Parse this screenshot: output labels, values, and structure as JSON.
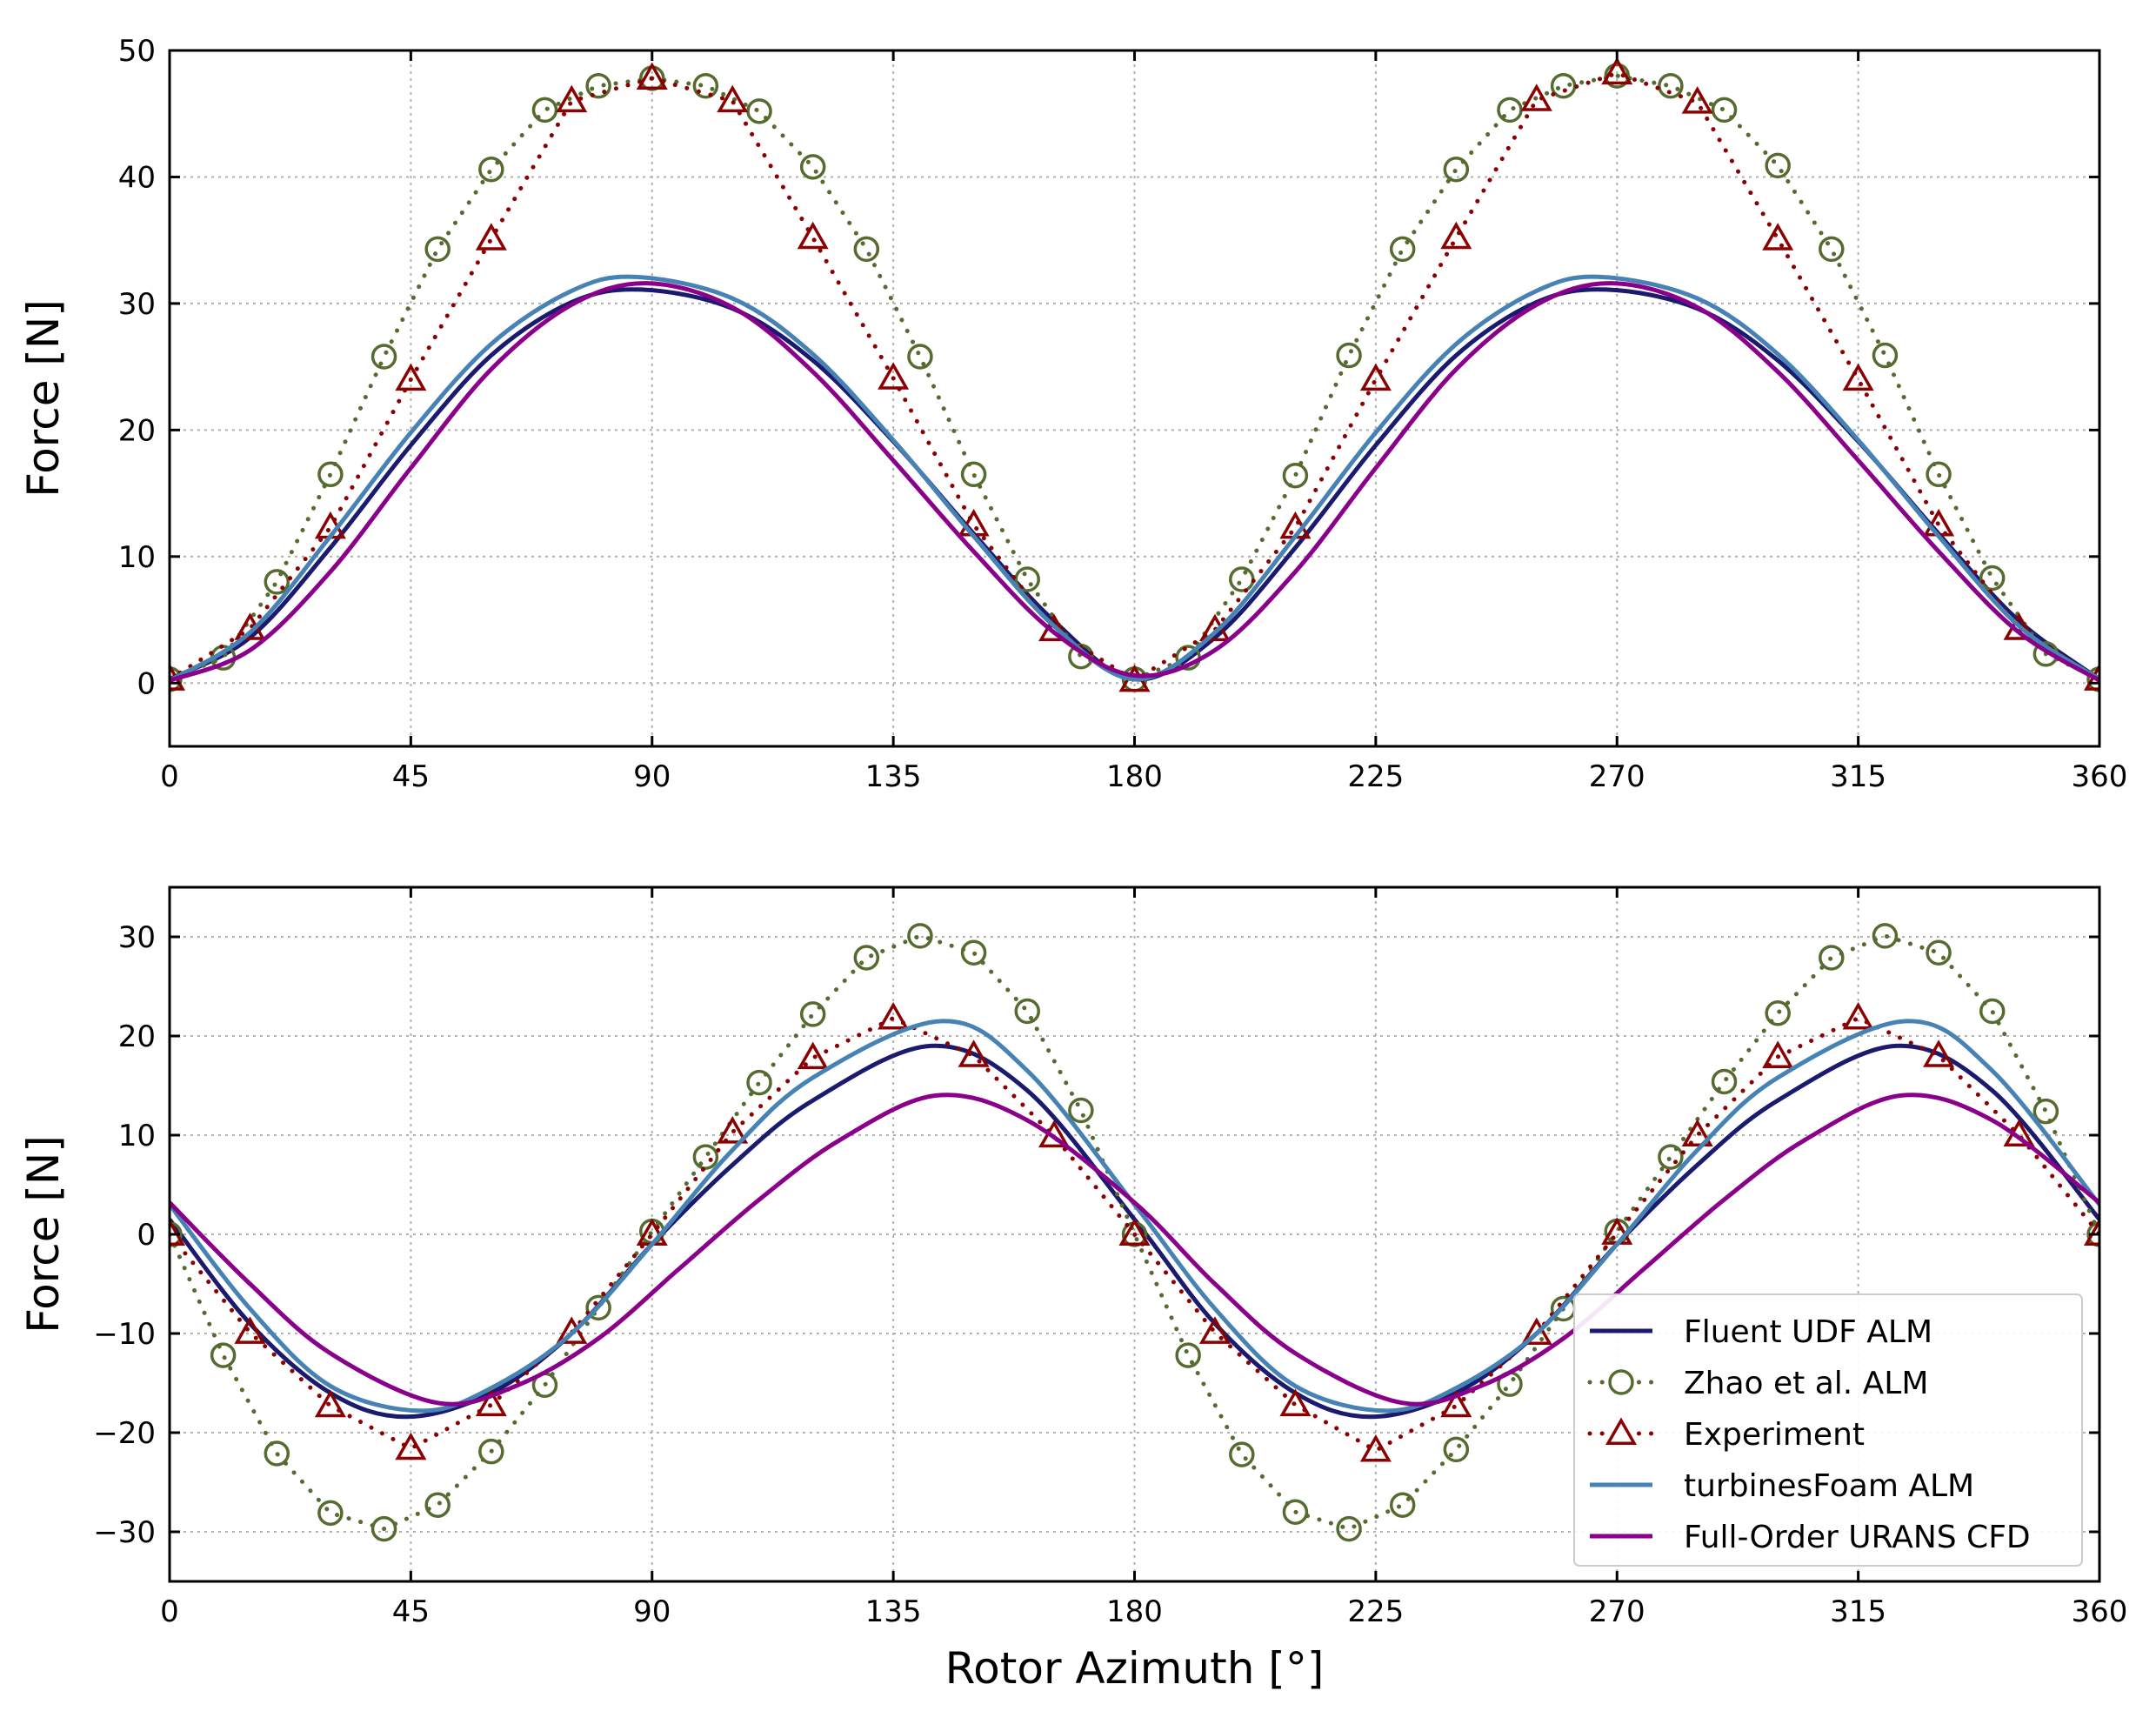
{
  "chart_data": [
    {
      "type": "line",
      "xlabel": "",
      "ylabel": "Force [N]",
      "xlim": [
        0,
        360
      ],
      "ylim": [
        -5,
        50
      ],
      "xticks": [
        0,
        45,
        90,
        135,
        180,
        225,
        270,
        315,
        360
      ],
      "yticks": [
        0,
        10,
        20,
        30,
        40,
        50
      ],
      "grid": true,
      "series": [
        {
          "name": "Fluent UDF ALM",
          "color": "#1a1a6e",
          "style": "solid",
          "x": [
            0,
            15,
            30,
            45,
            60,
            75,
            88,
            105,
            120,
            135,
            150,
            165,
            180,
            195,
            210,
            225,
            240,
            255,
            268,
            285,
            300,
            315,
            330,
            345,
            360
          ],
          "y": [
            0.3,
            3.6,
            10.7,
            18.8,
            25.9,
            30.1,
            31.1,
            29.6,
            25.5,
            19.1,
            11.8,
            4.9,
            0.3,
            3.6,
            10.7,
            18.8,
            25.9,
            30.1,
            31.1,
            29.6,
            25.5,
            19.1,
            11.8,
            4.9,
            0.3
          ]
        },
        {
          "name": "Zhao et al. ALM",
          "color": "#556b2f",
          "style": "dotted",
          "marker": "circle",
          "x": [
            0,
            10,
            20,
            30,
            40,
            50,
            60,
            70,
            80,
            90,
            100,
            110,
            120,
            130,
            140,
            150,
            160,
            170,
            180,
            190,
            200,
            210,
            220,
            230,
            240,
            250,
            260,
            270,
            280,
            290,
            300,
            310,
            320,
            330,
            340,
            350,
            360
          ],
          "y": [
            0.3,
            2.0,
            8.0,
            16.5,
            25.8,
            34.3,
            40.6,
            45.3,
            47.2,
            47.8,
            47.2,
            45.2,
            40.8,
            34.3,
            25.8,
            16.5,
            8.2,
            2.1,
            0.3,
            2.0,
            8.2,
            16.4,
            25.9,
            34.3,
            40.6,
            45.3,
            47.2,
            48.0,
            47.2,
            45.3,
            40.9,
            34.3,
            25.9,
            16.5,
            8.3,
            2.3,
            0.3
          ]
        },
        {
          "name": "Experiment",
          "color": "#8b0000",
          "style": "dotted",
          "marker": "triangle",
          "x": [
            0,
            15,
            30,
            45,
            60,
            75,
            90,
            105,
            120,
            135,
            150,
            165,
            180,
            195,
            210,
            225,
            240,
            255,
            270,
            285,
            300,
            315,
            330,
            345,
            360
          ],
          "y": [
            0.3,
            4.3,
            12.3,
            24.0,
            35.1,
            46.0,
            47.8,
            46.0,
            35.2,
            24.1,
            12.5,
            4.2,
            0.2,
            4.2,
            12.3,
            24.0,
            35.2,
            46.1,
            48.2,
            45.9,
            35.1,
            24.0,
            12.5,
            4.3,
            0.3
          ]
        },
        {
          "name": "turbinesFoam ALM",
          "color": "#4682b4",
          "style": "solid",
          "x": [
            0,
            15,
            30,
            45,
            60,
            75,
            87,
            105,
            120,
            135,
            150,
            165,
            180,
            195,
            210,
            225,
            240,
            255,
            267,
            285,
            300,
            315,
            330,
            345,
            360
          ],
          "y": [
            0.2,
            4.0,
            11.6,
            19.8,
            26.8,
            31.0,
            32.1,
            30.4,
            26.0,
            19.2,
            11.6,
            4.5,
            0.3,
            4.0,
            11.6,
            19.8,
            26.8,
            31.0,
            32.1,
            30.4,
            26.0,
            19.2,
            11.6,
            4.5,
            0.3
          ]
        },
        {
          "name": "Full-Order URANS CFD",
          "color": "#8b008b",
          "style": "solid",
          "x": [
            0,
            15,
            30,
            45,
            60,
            75,
            89,
            105,
            120,
            135,
            150,
            165,
            180,
            195,
            210,
            225,
            240,
            255,
            269,
            285,
            300,
            315,
            330,
            345,
            360
          ],
          "y": [
            0.2,
            2.6,
            8.8,
            17.0,
            24.8,
            29.9,
            31.6,
            29.7,
            24.6,
            17.6,
            10.4,
            4.0,
            0.6,
            2.6,
            8.8,
            17.0,
            24.8,
            29.9,
            31.6,
            29.7,
            24.6,
            17.6,
            10.4,
            4.0,
            0.2
          ]
        }
      ]
    },
    {
      "type": "line",
      "xlabel": "Rotor Azimuth [°]",
      "ylabel": "Force [N]",
      "xlim": [
        0,
        360
      ],
      "ylim": [
        -35,
        35
      ],
      "xticks": [
        0,
        45,
        90,
        135,
        180,
        225,
        270,
        315,
        360
      ],
      "yticks": [
        -30,
        -20,
        -10,
        0,
        10,
        20,
        30
      ],
      "tick_labels": {
        "x": [
          "0",
          "45",
          "90",
          "135",
          "180",
          "225",
          "270",
          "315",
          "360"
        ],
        "y": [
          "−30",
          "−20",
          "−10",
          "0",
          "10",
          "20",
          "30"
        ]
      },
      "grid": true,
      "legend": "lower-right",
      "series": [
        {
          "name": "Fluent UDF ALM",
          "color": "#1a1a6e",
          "style": "solid",
          "x": [
            0,
            15,
            30,
            44,
            60,
            75,
            90,
            105,
            120,
            142,
            160,
            180,
            195,
            210,
            224,
            240,
            255,
            270,
            285,
            300,
            322,
            340,
            360
          ],
          "y": [
            1.5,
            -9.0,
            -16.0,
            -18.4,
            -16.0,
            -10.0,
            -1.0,
            7.0,
            13.5,
            19.0,
            14.5,
            1.5,
            -9.0,
            -16.0,
            -18.4,
            -16.0,
            -10.0,
            -1.0,
            7.0,
            13.5,
            19.0,
            14.5,
            1.5
          ]
        },
        {
          "name": "Zhao et al. ALM",
          "color": "#556b2f",
          "style": "dotted",
          "marker": "circle",
          "x": [
            0,
            10,
            20,
            30,
            40,
            50,
            60,
            70,
            80,
            90,
            100,
            110,
            120,
            130,
            140,
            150,
            160,
            170,
            180,
            190,
            200,
            210,
            220,
            230,
            240,
            250,
            260,
            270,
            280,
            290,
            300,
            310,
            320,
            330,
            340,
            350,
            360
          ],
          "y": [
            0.0,
            -12.2,
            -22.1,
            -28.1,
            -29.7,
            -27.3,
            -21.9,
            -15.2,
            -7.4,
            0.3,
            7.8,
            15.3,
            22.2,
            27.9,
            30.1,
            28.4,
            22.5,
            12.5,
            0.0,
            -12.2,
            -22.2,
            -28.0,
            -29.7,
            -27.3,
            -21.7,
            -15.1,
            -7.5,
            0.3,
            7.8,
            15.4,
            22.3,
            27.9,
            30.1,
            28.4,
            22.5,
            12.4,
            0.0
          ]
        },
        {
          "name": "Experiment",
          "color": "#8b0000",
          "style": "dotted",
          "marker": "triangle",
          "x": [
            0,
            15,
            30,
            45,
            60,
            75,
            90,
            105,
            120,
            135,
            150,
            165,
            180,
            195,
            210,
            225,
            240,
            255,
            270,
            285,
            300,
            315,
            330,
            345,
            360
          ],
          "y": [
            0.0,
            -9.9,
            -17.3,
            -21.6,
            -17.2,
            -9.9,
            0.0,
            10.3,
            17.8,
            21.8,
            18.0,
            9.9,
            0.0,
            -9.9,
            -17.2,
            -21.8,
            -17.3,
            -10.0,
            0.1,
            10.0,
            17.9,
            21.8,
            18.0,
            10.0,
            0.0
          ]
        },
        {
          "name": "turbinesFoam ALM",
          "color": "#4682b4",
          "style": "solid",
          "x": [
            0,
            15,
            30,
            47,
            60,
            75,
            90,
            105,
            120,
            144,
            160,
            180,
            195,
            210,
            227,
            240,
            255,
            270,
            285,
            300,
            324,
            340,
            360
          ],
          "y": [
            3.0,
            -7.5,
            -15.3,
            -17.8,
            -15.5,
            -10.0,
            -1.0,
            8.5,
            15.8,
            21.5,
            16.5,
            3.0,
            -7.5,
            -15.3,
            -17.8,
            -15.5,
            -10.0,
            -1.0,
            8.5,
            15.8,
            21.5,
            16.5,
            3.0
          ]
        },
        {
          "name": "Full-Order URANS CFD",
          "color": "#8b008b",
          "style": "solid",
          "x": [
            0,
            15,
            30,
            50,
            65,
            80,
            95,
            110,
            125,
            143,
            160,
            180,
            195,
            210,
            230,
            245,
            260,
            275,
            290,
            305,
            323,
            340,
            360
          ],
          "y": [
            3.2,
            -5.0,
            -12.0,
            -17.0,
            -15.2,
            -10.5,
            -3.5,
            3.5,
            9.5,
            14.0,
            11.5,
            3.2,
            -5.0,
            -12.0,
            -17.0,
            -15.2,
            -10.5,
            -3.5,
            3.5,
            9.5,
            14.0,
            11.5,
            3.2
          ]
        }
      ]
    }
  ]
}
